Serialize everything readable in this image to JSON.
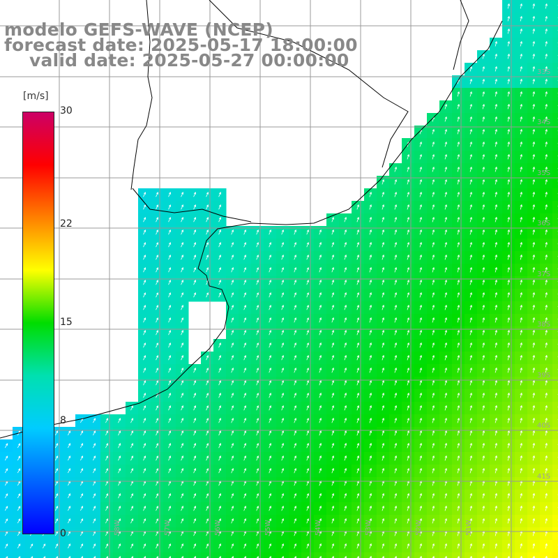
{
  "header": {
    "line1": "modelo GEFS-WAVE (NCEP)",
    "line2": "forecast date: 2025-05-17 18:00:00",
    "line3": "valid date: 2025-05-27 00:00:00"
  },
  "colorbar": {
    "unit": "[m/s]",
    "ticks": [
      {
        "label": "30",
        "value": 30
      },
      {
        "label": "22",
        "value": 22
      },
      {
        "label": "15",
        "value": 15
      },
      {
        "label": "8",
        "value": 8
      },
      {
        "label": "0",
        "value": 0
      }
    ],
    "stops": [
      "#0000ff",
      "#0066ff",
      "#00ccff",
      "#00e0b0",
      "#00dd00",
      "#ffff00",
      "#ff8000",
      "#ff0000",
      "#cc0066"
    ]
  },
  "grid_labels": {
    "longitudes": [
      "58W",
      "57W",
      "56W",
      "55W",
      "54W",
      "53W",
      "52W",
      "51W"
    ],
    "latitudes": [
      "33S",
      "34S",
      "35S",
      "36S",
      "37S",
      "38S",
      "39S",
      "40S",
      "41S"
    ]
  },
  "map_colors": {
    "land": "#ffffff",
    "coast": "#000000",
    "grid": "#999999",
    "arrow": "#ffffff"
  }
}
